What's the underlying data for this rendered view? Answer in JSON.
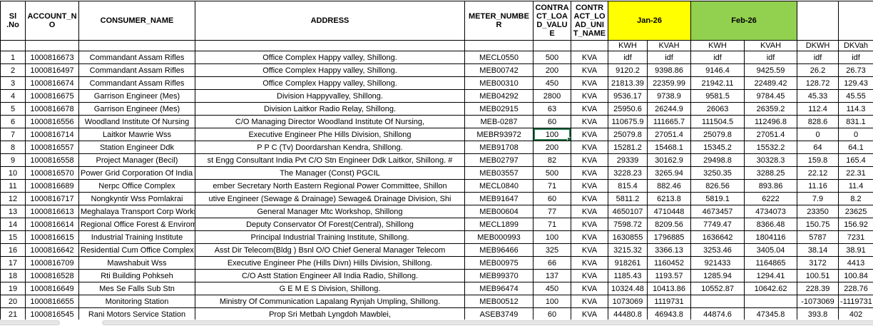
{
  "table": {
    "columns": [
      {
        "key": "sl",
        "label": "Sl .No"
      },
      {
        "key": "account_no",
        "label": "ACCOUNT_NO"
      },
      {
        "key": "consumer_name",
        "label": "CONSUMER_NAME"
      },
      {
        "key": "address",
        "label": "ADDRESS"
      },
      {
        "key": "meter_number",
        "label": "METER_NUMBER"
      },
      {
        "key": "contract_load_value",
        "label": "CONTRACT_LOAD_VALUE"
      },
      {
        "key": "contract_load_unit_name",
        "label": "CONTRACT_LOAD_UNIT_NAME"
      }
    ],
    "month_groups": [
      {
        "label": "Jan-26",
        "color": "#FFFF00",
        "sub_columns": [
          "KWH",
          "KVAH"
        ]
      },
      {
        "label": "Feb-26",
        "color": "#92D050",
        "sub_columns": [
          "KWH",
          "KVAH"
        ]
      }
    ],
    "extra_columns": [
      "DKWH",
      "DKVah"
    ],
    "rows": [
      [
        "1",
        "1000816673",
        "Commandant Assam Rifles",
        "Office Complex Happy valley, Shillong.",
        "MECL0550",
        "500",
        "KVA",
        "idf",
        "idf",
        "idf",
        "idf",
        "idf",
        "idf"
      ],
      [
        "2",
        "1000816497",
        "Commandant Assam Rifles",
        "Office Complex Happy valley, Shillong.",
        "MEB00742",
        "200",
        "KVA",
        "9120.2",
        "9398.86",
        "9146.4",
        "9425.59",
        "26.2",
        "26.73"
      ],
      [
        "3",
        "1000816674",
        "Commandant Assam Rifles",
        "Office Complex Happy valley, Shillong.",
        "MEB00310",
        "450",
        "KVA",
        "21813.39",
        "22359.99",
        "21942.11",
        "22489.42",
        "128.72",
        "129.43"
      ],
      [
        "4",
        "1000816675",
        "Garrison Engineer (Mes)",
        "Division Happyvalley, Shillong.",
        "MEB04292",
        "2800",
        "KVA",
        "9536.17",
        "9738.9",
        "9581.5",
        "9784.45",
        "45.33",
        "45.55"
      ],
      [
        "5",
        "1000816678",
        "Garrison Engineer (Mes)",
        "Division Laitkor Radio Relay, Shillong.",
        "MEB02915",
        "63",
        "KVA",
        "25950.6",
        "26244.9",
        "26063",
        "26359.2",
        "112.4",
        "114.3"
      ],
      [
        "6",
        "1000816556",
        "Woodland Institute Of Nursing",
        "C/O Managing Director Woodland Institute Of Nursing,",
        "MEB-0287",
        "60",
        "KVA",
        "110675.9",
        "111665.7",
        "111504.5",
        "112496.8",
        "828.6",
        "831.1"
      ],
      [
        "7",
        "1000816714",
        "Laitkor Mawrie Wss",
        "Executive Engineer Phe Hills Division, Shillong",
        "MEBR93972",
        "100",
        "KVA",
        "25079.8",
        "27051.4",
        "25079.8",
        "27051.4",
        "0",
        "0"
      ],
      [
        "8",
        "1000816557",
        "Station Engineer Ddk",
        "P P C (Tv) Doordarshan Kendra, Shillong.",
        "MEB91708",
        "200",
        "KVA",
        "15281.2",
        "15468.1",
        "15345.2",
        "15532.2",
        "64",
        "64.1"
      ],
      [
        "9",
        "1000816558",
        "Project Manager (Becil)",
        "st Engg Consultant India Pvt C/O Stn Engineer Ddk Laitkor, Shillong. #",
        "MEB02797",
        "82",
        "KVA",
        "29339",
        "30162.9",
        "29498.8",
        "30328.3",
        "159.8",
        "165.4"
      ],
      [
        "10",
        "1000816570",
        "Power Grid Corporation Of India Ltd",
        "The Manager (Const) PGCIL",
        "MEB03557",
        "500",
        "KVA",
        "3228.23",
        "3265.94",
        "3250.35",
        "3288.25",
        "22.12",
        "22.31"
      ],
      [
        "11",
        "1000816689",
        "Nerpc Office Complex",
        "ember Secretary North Eastern Regional Power Committee, Shillon",
        "MECL0840",
        "71",
        "KVA",
        "815.4",
        "882.46",
        "826.56",
        "893.86",
        "11.16",
        "11.4"
      ],
      [
        "12",
        "1000816717",
        "Nongkyntir Wss Pomlakrai",
        "utive Engineer (Sewage & Drainage) Sewage& Drainage Division, Shi",
        "MEB91647",
        "60",
        "KVA",
        "5811.2",
        "6213.8",
        "5819.1",
        "6222",
        "7.9",
        "8.2"
      ],
      [
        "13",
        "1000816613",
        "Meghalaya Transport Corp Workshop",
        "General Manager Mtc Workshop, Shillong",
        "MEB00604",
        "77",
        "KVA",
        "4650107",
        "4710448",
        "4673457",
        "4734073",
        "23350",
        "23625"
      ],
      [
        "14",
        "1000816614",
        "Regional Office Forest & Enviroment Ner",
        "Deputy Conservator Of Forest(Central), Shillong",
        "MECL1899",
        "71",
        "KVA",
        "7598.72",
        "8209.56",
        "7749.47",
        "8366.48",
        "150.75",
        "156.92"
      ],
      [
        "15",
        "1000816615",
        "Industrial Training Institute",
        "Principal Industrial Training Institute, Shillong.",
        "MEB000993",
        "100",
        "KVA",
        "1630855",
        "1796885",
        "1636642",
        "1804116",
        "5787",
        "7231"
      ],
      [
        "16",
        "1000816642",
        "Residential Cum Office Complex Rynjah",
        "Asst Dir Telecom(Bldg ) Bsnl O/O Chief General Manager Telecom",
        "MEB96466",
        "325",
        "KVA",
        "3215.32",
        "3366.13",
        "3253.46",
        "3405.04",
        "38.14",
        "38.91"
      ],
      [
        "17",
        "1000816709",
        "Mawshabuit  Wss",
        "Executive Engineer Phe (Hills Divn) Hills Division, Shillong.",
        "MEB00975",
        "66",
        "KVA",
        "918261",
        "1160452",
        "921433",
        "1164865",
        "3172",
        "4413"
      ],
      [
        "18",
        "1000816528",
        "Rti Building Pohkseh",
        "C/O Astt Station Engineer All India Radio, Shillong.",
        "MEB99370",
        "137",
        "KVA",
        "1185.43",
        "1193.57",
        "1285.94",
        "1294.41",
        "100.51",
        "100.84"
      ],
      [
        "19",
        "1000816649",
        "Mes Se Falls Sub Stn",
        "G E M E S Division, Shillong.",
        "MEB96474",
        "450",
        "KVA",
        "10324.48",
        "10413.86",
        "10552.87",
        "10642.62",
        "228.39",
        "228.76"
      ],
      [
        "20",
        "1000816655",
        "Monitoring Station",
        "Ministry Of Communication Lapalang Rynjah Umpling, Shillong.",
        "MEB00512",
        "100",
        "KVA",
        "1073069",
        "1119731",
        "",
        "",
        "-1073069",
        "-1119731"
      ],
      [
        "21",
        "1000816545",
        "Rani Motors Service Station",
        "Prop Sri Metbah Lyngdoh Mawblei,",
        "ASEB3749",
        "60",
        "KVA",
        "44480.8",
        "46943.8",
        "44874.6",
        "47345.8",
        "393.8",
        "402"
      ]
    ]
  },
  "selection": {
    "active_cell_row": "7",
    "active_cell_column": "CONTRACT_LOAD_VALUE",
    "active_cell_value": "100",
    "border_color": "#217346"
  },
  "colors": {
    "jan_header_bg": "#FFFF00",
    "feb_header_bg": "#92D050",
    "grid_border": "#000000"
  }
}
